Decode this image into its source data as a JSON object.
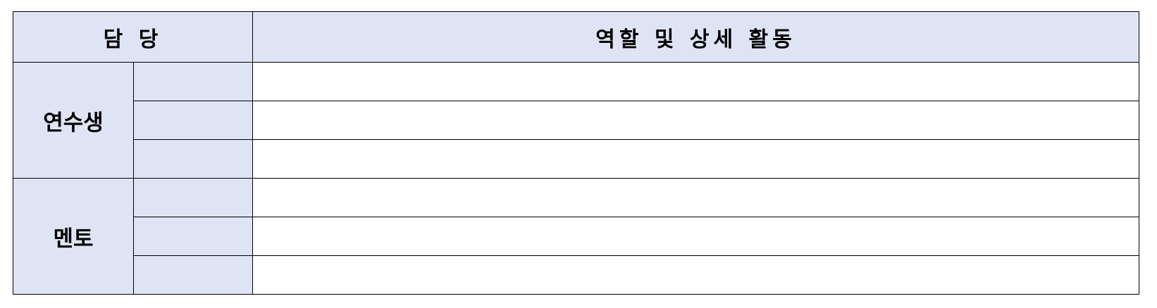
{
  "table": {
    "headers": {
      "role": "담 당",
      "detail": "역할 및 상세 활동"
    },
    "groups": [
      {
        "label": "연수생",
        "rows": [
          {
            "sub": "",
            "detail": ""
          },
          {
            "sub": "",
            "detail": ""
          },
          {
            "sub": "",
            "detail": ""
          }
        ]
      },
      {
        "label": "멘토",
        "rows": [
          {
            "sub": "",
            "detail": ""
          },
          {
            "sub": "",
            "detail": ""
          },
          {
            "sub": "",
            "detail": ""
          }
        ]
      }
    ]
  },
  "colors": {
    "header_fill": "#dfe4f5",
    "border": "#000000"
  }
}
